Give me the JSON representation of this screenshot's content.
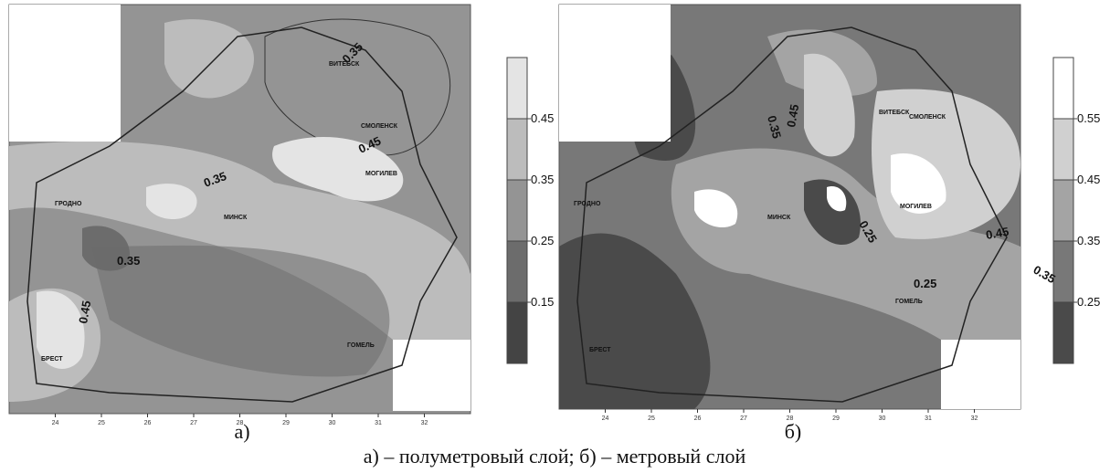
{
  "caption": "а) – полуметровый слой; б) – метровый слой",
  "panels": [
    {
      "label": "а)",
      "lon_ticks": [
        24,
        25,
        26,
        27,
        28,
        29,
        30,
        31,
        32
      ],
      "legend": {
        "levels": [
          0.45,
          0.35,
          0.25,
          0.15
        ],
        "colors": [
          "#e4e4e4",
          "#bcbcbc",
          "#949494",
          "#6c6c6c",
          "#444444"
        ]
      },
      "contour_labels": [
        0.35,
        0.45,
        0.35,
        0.35,
        0.45
      ],
      "cities": [
        "ВИТЕБСК",
        "МИНСК",
        "МОГИЛЕВ",
        "ГРОДНО",
        "БРЕСТ",
        "ГОМЕЛЬ",
        "СМОЛЕНСК"
      ]
    },
    {
      "label": "б)",
      "lon_ticks": [
        24,
        25,
        26,
        27,
        28,
        29,
        30,
        31,
        32
      ],
      "legend": {
        "levels": [
          0.55,
          0.45,
          0.35,
          0.25
        ],
        "colors": [
          "#ffffff",
          "#d0d0d0",
          "#a4a4a4",
          "#787878",
          "#4a4a4a"
        ]
      },
      "contour_labels": [
        0.35,
        0.45,
        0.25,
        0.45,
        0.35,
        0.25
      ],
      "cities": [
        "ВИТЕБСК",
        "МИНСК",
        "МОГИЛЕВ",
        "ГРОДНО",
        "БРЕСТ",
        "ГОМЕЛЬ",
        "СМОЛЕНСК"
      ]
    }
  ]
}
